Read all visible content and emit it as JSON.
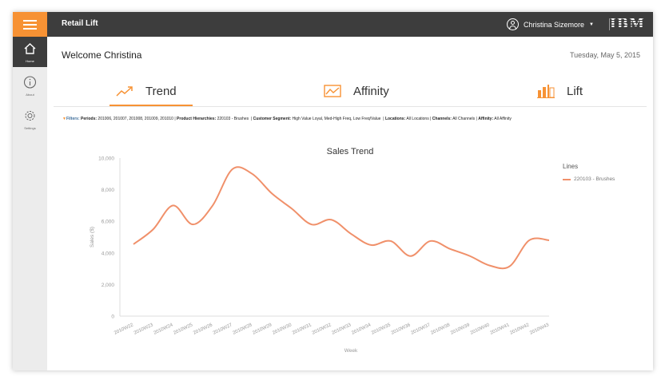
{
  "app": {
    "title": "Retail Lift"
  },
  "header": {
    "user_name": "Christina Sizemore",
    "logo": "IBM"
  },
  "sidebar": {
    "items": [
      {
        "label": "Home",
        "icon": "home-icon"
      },
      {
        "label": "About",
        "icon": "info-icon"
      },
      {
        "label": "Settings",
        "icon": "gear-icon"
      }
    ]
  },
  "main": {
    "welcome": "Welcome Christina",
    "date": "Tuesday, May 5, 2015"
  },
  "tabs": [
    {
      "label": "Trend",
      "icon": "trend-icon"
    },
    {
      "label": "Affinity",
      "icon": "affinity-icon"
    },
    {
      "label": "Lift",
      "icon": "lift-icon"
    }
  ],
  "filters": {
    "title": "Filters:",
    "periods_label": "Periods:",
    "periods": "201006, 201007, 201008, 201009, 201010",
    "hierarchies_label": "Product Hierarchies:",
    "hierarchies": "220103 - Brushes",
    "segment_label": "Customer Segment:",
    "segment": "High Value Loyal, Med-High Freq, Low Freq/Value",
    "locations_label": "Locations:",
    "locations": "All Locations",
    "channels_label": "Channels:",
    "channels": "All Channels",
    "affinity_label": "Affinity:",
    "affinity": "All Affinity"
  },
  "colors": {
    "accent": "#f79234",
    "line": "#f0906a",
    "topbar": "#3d3d3d"
  },
  "chart_data": {
    "type": "line",
    "title": "Sales Trend",
    "xlabel": "Week",
    "ylabel": "Sales ($)",
    "ylim": [
      0,
      10000
    ],
    "yticks": [
      0,
      2000,
      4000,
      6000,
      8000,
      10000
    ],
    "ytick_labels": [
      "0",
      "2,000",
      "4,000",
      "6,000",
      "8,000",
      "10,000"
    ],
    "legend_title": "Lines",
    "x": [
      "2010W22",
      "2010W23",
      "2010W24",
      "2010W25",
      "2010W26",
      "2010W27",
      "2010W28",
      "2010W29",
      "2010W30",
      "2010W31",
      "2010W32",
      "2010W33",
      "2010W34",
      "2010W35",
      "2010W36",
      "2010W37",
      "2010W38",
      "2010W39",
      "2010W40",
      "2010W41",
      "2010W42",
      "2010W43"
    ],
    "series": [
      {
        "name": "220103 - Brushes",
        "values": [
          4550,
          5500,
          7000,
          5800,
          7000,
          9300,
          9000,
          7750,
          6800,
          5800,
          6100,
          5200,
          4500,
          4750,
          3800,
          4750,
          4250,
          3800,
          3200,
          3150,
          4800,
          4800
        ]
      }
    ]
  }
}
